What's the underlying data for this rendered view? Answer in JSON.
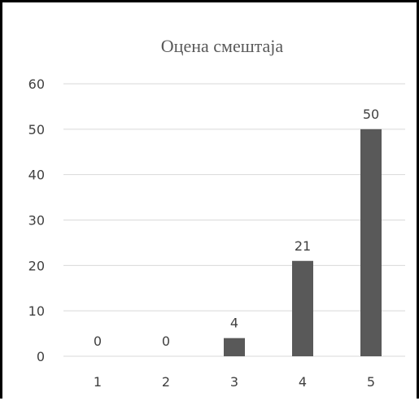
{
  "chart_data": {
    "type": "bar",
    "title": "Оцена смештаја",
    "categories": [
      "1",
      "2",
      "3",
      "4",
      "5"
    ],
    "values": [
      0,
      0,
      4,
      21,
      50
    ],
    "data_labels": [
      "0",
      "0",
      "4",
      "21",
      "50"
    ],
    "ylim": [
      0,
      60
    ],
    "yticks": [
      0,
      10,
      20,
      30,
      40,
      50,
      60
    ],
    "ytick_labels": [
      "0",
      "10",
      "20",
      "30",
      "40",
      "50",
      "60"
    ],
    "xlabel": "",
    "ylabel": "",
    "grid": true,
    "legend": "none",
    "colors": {
      "bar": "#595959",
      "grid": "#d9d9d9",
      "axis": "#d9d9d9",
      "text": "#404040",
      "title": "#595959",
      "frame": "#000000"
    }
  }
}
